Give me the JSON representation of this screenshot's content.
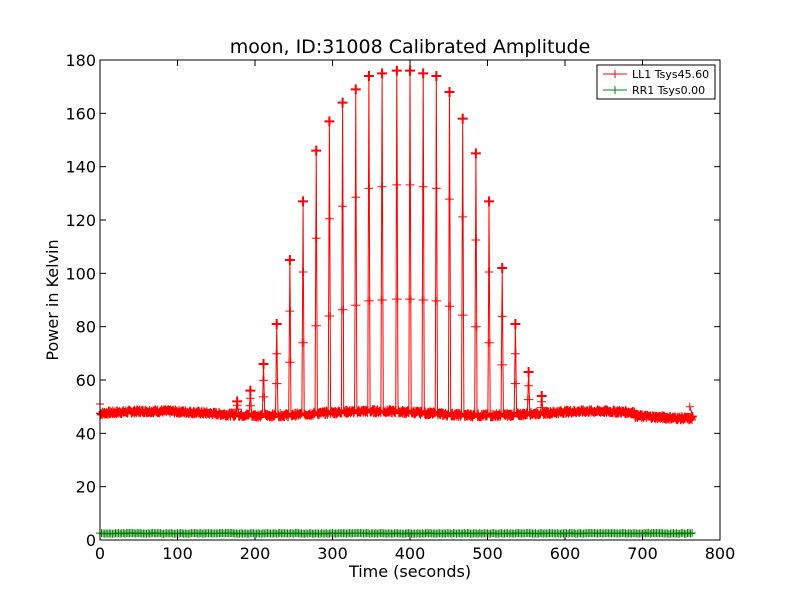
{
  "chart_data": {
    "type": "line",
    "title": "moon, ID:31008 Calibrated Amplitude",
    "xlabel": "Time (seconds)",
    "ylabel": "Power in Kelvin",
    "xlim": [
      0,
      800
    ],
    "ylim": [
      0,
      180
    ],
    "x_ticks": [
      0,
      100,
      200,
      300,
      400,
      500,
      600,
      700,
      800
    ],
    "y_ticks": [
      0,
      20,
      40,
      60,
      80,
      100,
      120,
      140,
      160,
      180
    ],
    "grid": false,
    "legend_position": "top-right",
    "x_range_data": [
      0,
      765
    ],
    "series": [
      {
        "name": "LL1 Tsys45.60",
        "color": "#ff0000",
        "marker": "+",
        "baseline": 47.5,
        "scan_peaks": [
          {
            "t": 177,
            "peak": 52
          },
          {
            "t": 194,
            "peak": 56
          },
          {
            "t": 211,
            "peak": 66
          },
          {
            "t": 228,
            "peak": 81
          },
          {
            "t": 245,
            "peak": 105
          },
          {
            "t": 262,
            "peak": 127
          },
          {
            "t": 279,
            "peak": 146
          },
          {
            "t": 296,
            "peak": 157
          },
          {
            "t": 313,
            "peak": 164
          },
          {
            "t": 330,
            "peak": 169
          },
          {
            "t": 347,
            "peak": 174
          },
          {
            "t": 364,
            "peak": 175
          },
          {
            "t": 383,
            "peak": 176
          },
          {
            "t": 400,
            "peak": 176
          },
          {
            "t": 417,
            "peak": 175
          },
          {
            "t": 434,
            "peak": 174
          },
          {
            "t": 451,
            "peak": 168
          },
          {
            "t": 468,
            "peak": 158
          },
          {
            "t": 485,
            "peak": 145
          },
          {
            "t": 502,
            "peak": 127
          },
          {
            "t": 519,
            "peak": 102
          },
          {
            "t": 536,
            "peak": 81
          },
          {
            "t": 553,
            "peak": 63
          },
          {
            "t": 570,
            "peak": 54
          }
        ]
      },
      {
        "name": "RR1 Tsys0.00",
        "color": "#008000",
        "marker": "+",
        "baseline": 2.5
      }
    ]
  }
}
